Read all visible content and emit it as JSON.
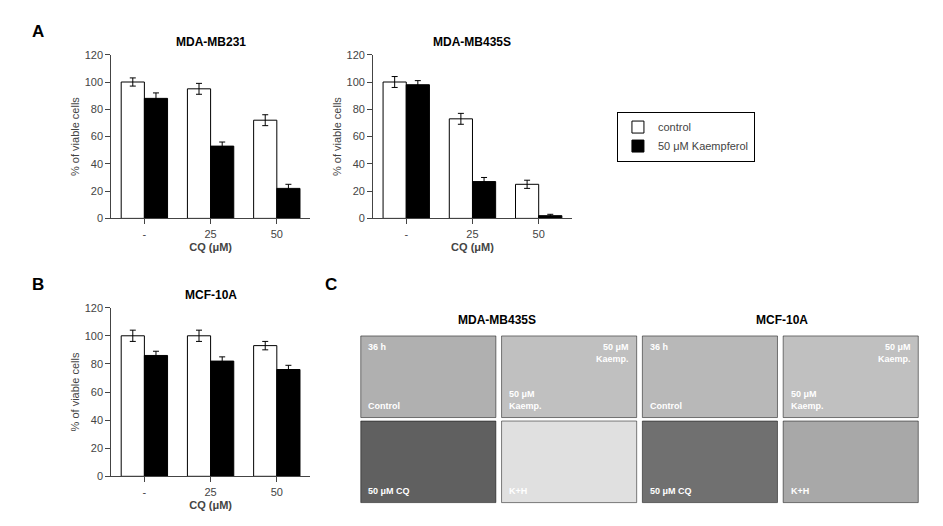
{
  "chart_data": [
    {
      "type": "bar",
      "title": "MDA-MB231",
      "xlabel": "CQ (μM)",
      "ylabel": "% of viable cells",
      "categories": [
        "-",
        "25",
        "50"
      ],
      "series": [
        {
          "name": "control",
          "color": "white",
          "values": [
            100,
            95,
            72
          ],
          "errors": [
            3,
            4,
            4
          ]
        },
        {
          "name": "50 μM Kaempferol",
          "color": "black",
          "values": [
            88,
            53,
            22
          ],
          "errors": [
            4,
            3,
            3
          ]
        }
      ],
      "ylim": [
        0,
        120
      ],
      "yticks": [
        0,
        20,
        40,
        60,
        80,
        100,
        120
      ],
      "grid": false,
      "annotations": [
        "A"
      ]
    },
    {
      "type": "bar",
      "title": "MDA-MB435S",
      "xlabel": "CQ (μM)",
      "ylabel": "% of viable cells",
      "categories": [
        "-",
        "25",
        "50"
      ],
      "series": [
        {
          "name": "control",
          "color": "white",
          "values": [
            100,
            73,
            25
          ],
          "errors": [
            4,
            4,
            3
          ]
        },
        {
          "name": "50 μM Kaempferol",
          "color": "black",
          "values": [
            98,
            27,
            2
          ],
          "errors": [
            3,
            3,
            1
          ]
        }
      ],
      "ylim": [
        0,
        120
      ],
      "yticks": [
        0,
        20,
        40,
        60,
        80,
        100,
        120
      ],
      "grid": false,
      "legend": "right"
    },
    {
      "type": "bar",
      "title": "MCF-10A",
      "xlabel": "CQ (μM)",
      "ylabel": "% of viable cells",
      "categories": [
        "-",
        "25",
        "50"
      ],
      "series": [
        {
          "name": "control",
          "color": "white",
          "values": [
            100,
            100,
            93
          ],
          "errors": [
            4,
            4,
            3
          ]
        },
        {
          "name": "50 μM Kaempferol",
          "color": "black",
          "values": [
            86,
            82,
            76
          ],
          "errors": [
            3,
            3,
            3
          ]
        }
      ],
      "ylim": [
        0,
        120
      ],
      "yticks": [
        0,
        20,
        40,
        60,
        80,
        100,
        120
      ],
      "grid": false,
      "annotations": [
        "B"
      ]
    },
    {
      "type": "image_grid",
      "column_titles": [
        "MDA-MB435S",
        "MCF-10A"
      ],
      "annotations": [
        "C"
      ],
      "cells": [
        {
          "color": "#b0b0b0",
          "annotations": [
            "36 h",
            "Control"
          ]
        },
        {
          "color": "#c0c0c0",
          "annotations": [
            "50 μM\nKaemp.",
            "50 μM\nKaemp."
          ]
        },
        {
          "color": "#b8b8b8",
          "annotations": [
            "36 h",
            "Control"
          ]
        },
        {
          "color": "#c0c0c0",
          "annotations": [
            "50 μM\nKaemp.",
            "50 μM\nKaemp."
          ]
        },
        {
          "color": "#606060",
          "annotations": [
            "50 μM CQ"
          ]
        },
        {
          "color": "#e0e0e0",
          "annotations": [
            "K+H"
          ]
        },
        {
          "color": "#707070",
          "annotations": [
            "50 μM CQ"
          ]
        },
        {
          "color": "#a8a8a8",
          "annotations": [
            "K+H"
          ]
        }
      ]
    }
  ]
}
